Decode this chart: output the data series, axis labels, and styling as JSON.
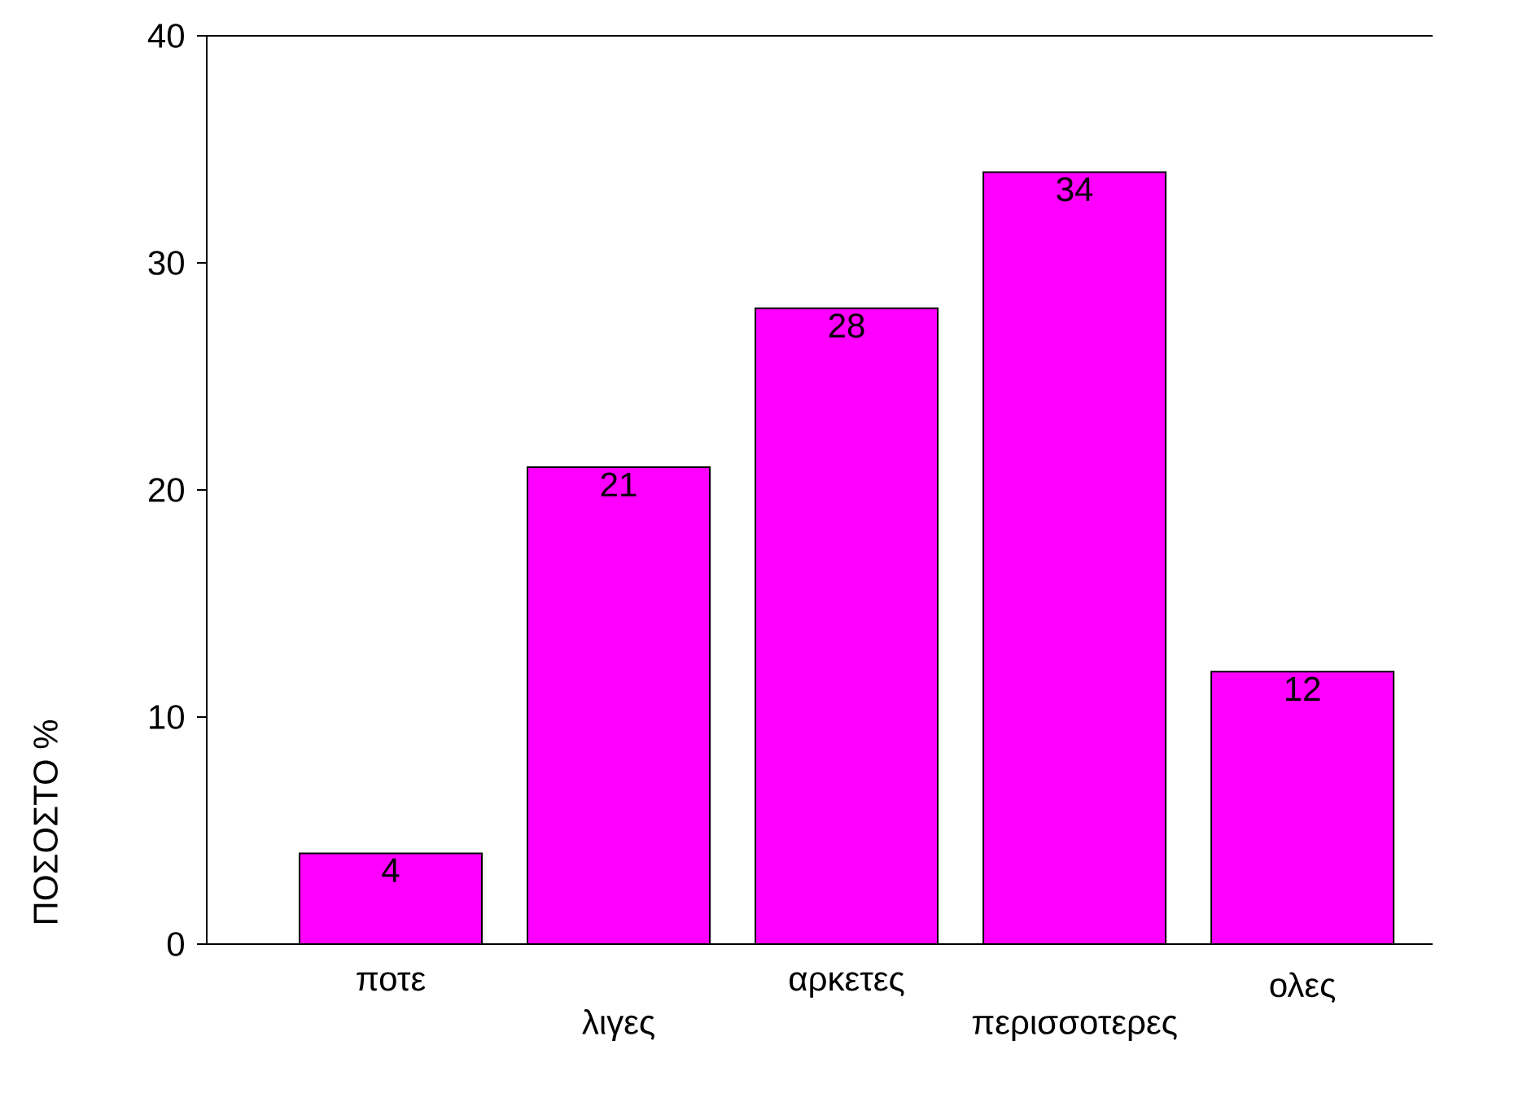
{
  "chart_data": {
    "type": "bar",
    "ylabel": "ΠΟΣΟΣΤΟ %",
    "categories": [
      "ποτε",
      "λιγες",
      "αρκετες",
      "περισσοτερες",
      "ολες"
    ],
    "values": [
      4,
      21,
      28,
      34,
      12
    ],
    "color": "#ff00ff",
    "ylim": [
      0,
      40
    ],
    "yticks": [
      0,
      10,
      20,
      30,
      40
    ],
    "data_labels": true
  }
}
